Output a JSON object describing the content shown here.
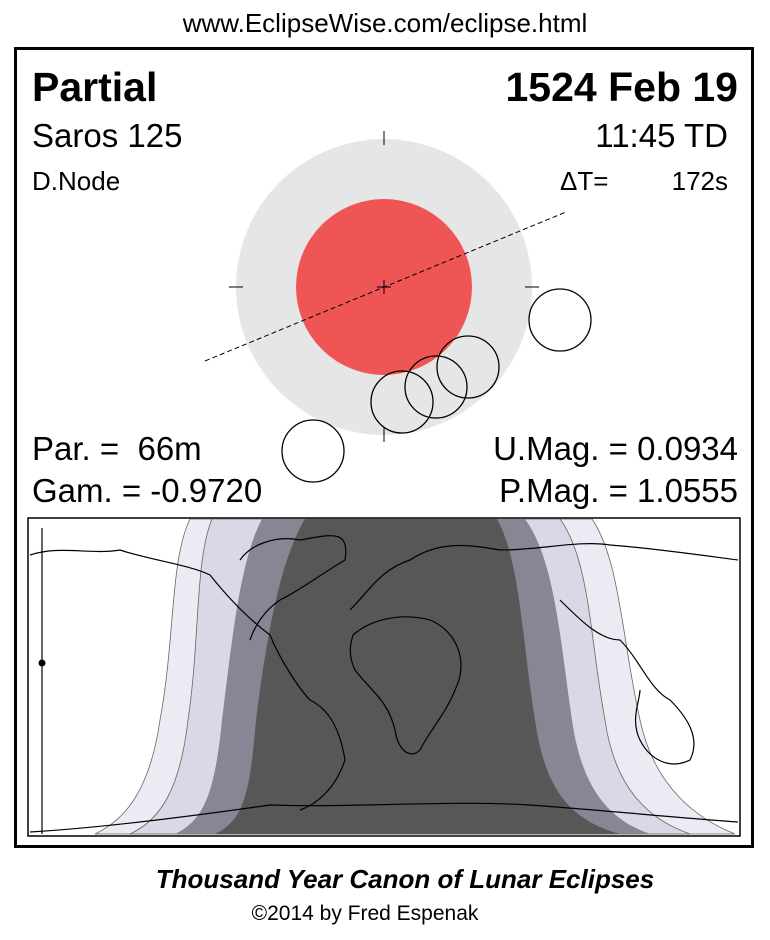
{
  "url": "www.EclipseWise.com/eclipse.html",
  "eclipse": {
    "type": "Partial",
    "date": "1524 Feb 19",
    "saros": "Saros 125",
    "time": "11:45 TD",
    "node": "D.Node",
    "delta_t_label": "ΔT=",
    "delta_t_value": "172s",
    "partial_duration": "Par. =  66m",
    "gamma": "Gam. = -0.9720",
    "umbral_magnitude": "U.Mag. = 0.0934",
    "penumbral_magnitude": "P.Mag. = 1.0555"
  },
  "colors": {
    "penumbra": "#e6e6e6",
    "umbra": "#f05555",
    "map_umbra": "#575757",
    "map_partial": "#868694",
    "map_pen1": "#d8d8e6",
    "map_pen2": "#ebebf3"
  },
  "credits": {
    "title": "Thousand Year Canon of Lunar Eclipses",
    "copyright": "©2014 by Fred Espenak"
  }
}
